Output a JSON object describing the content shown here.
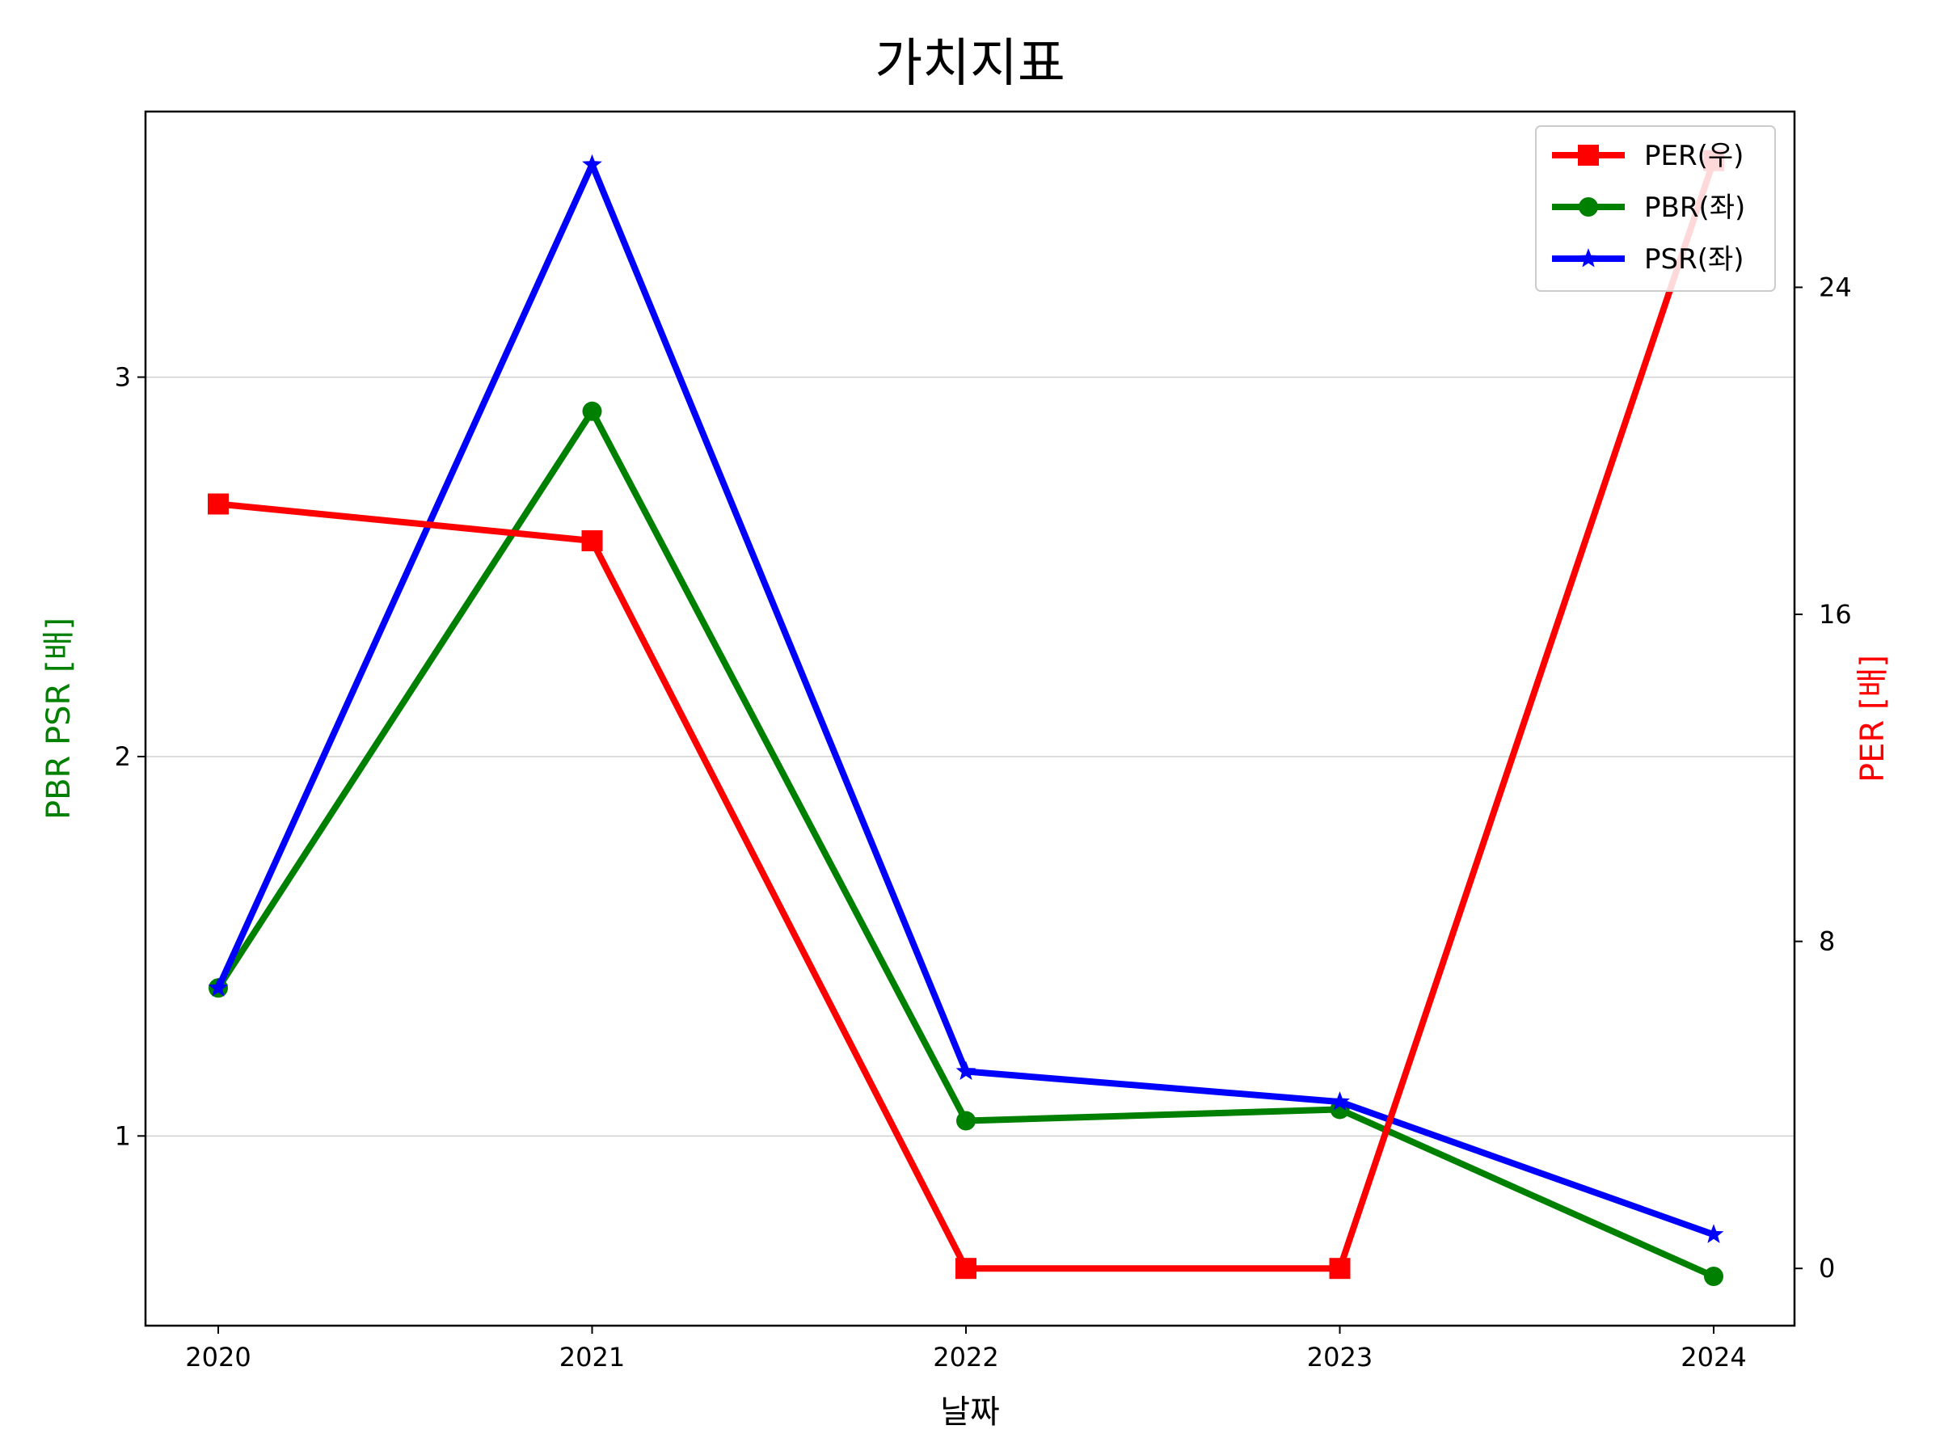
{
  "chart_data": {
    "type": "line",
    "title": "가치지표",
    "xlabel": "날짜",
    "ylabel_left": "PBR PSR [배]",
    "ylabel_right": "PER [배]",
    "categories": [
      "2020",
      "2021",
      "2022",
      "2023",
      "2024"
    ],
    "ylim_left": [
      0.5,
      3.7
    ],
    "yticks_left": [
      1,
      2,
      3
    ],
    "ylim_right": [
      -1.4,
      28.3
    ],
    "yticks_right": [
      0,
      8,
      16,
      24
    ],
    "grid": "horizontal-left",
    "legend_position": "top-right",
    "series": [
      {
        "name": "PER(우)",
        "axis": "right",
        "color": "#ff0000",
        "marker": "square",
        "values": [
          18.7,
          17.8,
          0,
          0,
          27.1
        ]
      },
      {
        "name": "PBR(좌)",
        "axis": "left",
        "color": "#008000",
        "marker": "circle",
        "values": [
          1.39,
          2.91,
          1.04,
          1.07,
          0.63
        ]
      },
      {
        "name": "PSR(좌)",
        "axis": "left",
        "color": "#0000ff",
        "marker": "star",
        "values": [
          1.39,
          3.56,
          1.17,
          1.09,
          0.74
        ]
      }
    ]
  }
}
